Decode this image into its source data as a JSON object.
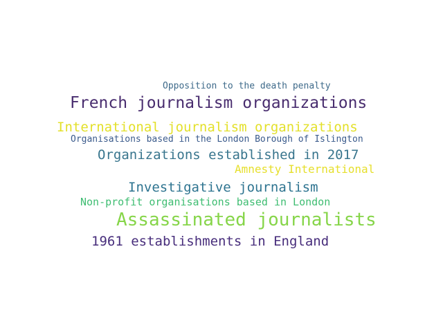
{
  "words": [
    {
      "text": "Opposition to the death penalty",
      "color": "#3e6a8a"
    },
    {
      "text": "French journalism organizations",
      "color": "#482c6e"
    },
    {
      "text": "International journalism organizations",
      "color": "#e3e02a"
    },
    {
      "text": "Organisations based in the London Borough of Islington",
      "color": "#3b5b8c"
    },
    {
      "text": "Organizations established in 2017",
      "color": "#38758d"
    },
    {
      "text": "Amnesty International",
      "color": "#e6df2b"
    },
    {
      "text": "Investigative journalism",
      "color": "#2e7490"
    },
    {
      "text": "Non-profit organisations based in London",
      "color": "#3fbd72"
    },
    {
      "text": "Assassinated journalists",
      "color": "#86d549"
    },
    {
      "text": "1961 establishments in England",
      "color": "#472d7b"
    }
  ]
}
